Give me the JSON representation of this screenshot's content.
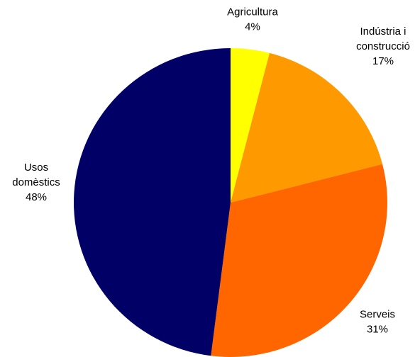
{
  "chart_data": {
    "type": "pie",
    "start_angle_deg": 0,
    "direction": "clockwise",
    "slices": [
      {
        "name": [
          "Agricultura"
        ],
        "value": 4,
        "label": "4%",
        "color": "#FFFF00"
      },
      {
        "name": [
          "Indústria i",
          "construcció"
        ],
        "value": 17,
        "label": "17%",
        "color": "#FF9900"
      },
      {
        "name": [
          "Serveis"
        ],
        "value": 31,
        "label": "31%",
        "color": "#FF6600"
      },
      {
        "name": [
          "Usos",
          "domèstics"
        ],
        "value": 48,
        "label": "48%",
        "color": "#000066"
      }
    ]
  }
}
